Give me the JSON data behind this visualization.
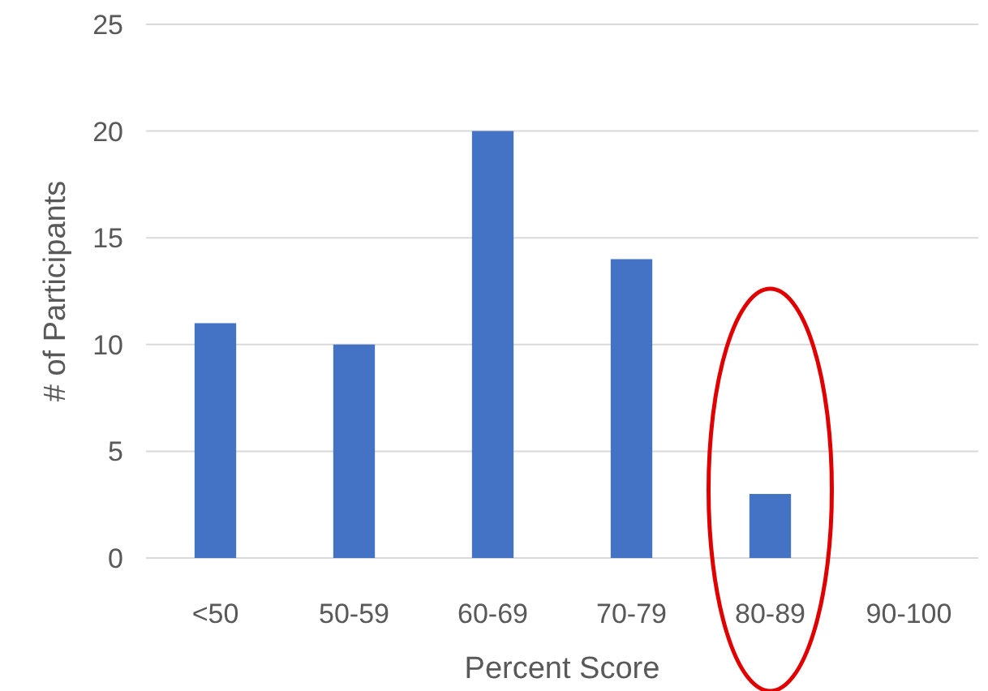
{
  "chart_data": {
    "type": "bar",
    "xlabel": "Percent Score",
    "ylabel": "# of Participants",
    "categories": [
      "<50",
      "50-59",
      "60-69",
      "70-79",
      "80-89",
      "90-100"
    ],
    "values": [
      11,
      10,
      20,
      14,
      3,
      0
    ],
    "color": "#4472c4",
    "ylim": [
      0,
      25
    ],
    "yticks": [
      0,
      5,
      10,
      15,
      20,
      25
    ],
    "grid": "y"
  }
}
